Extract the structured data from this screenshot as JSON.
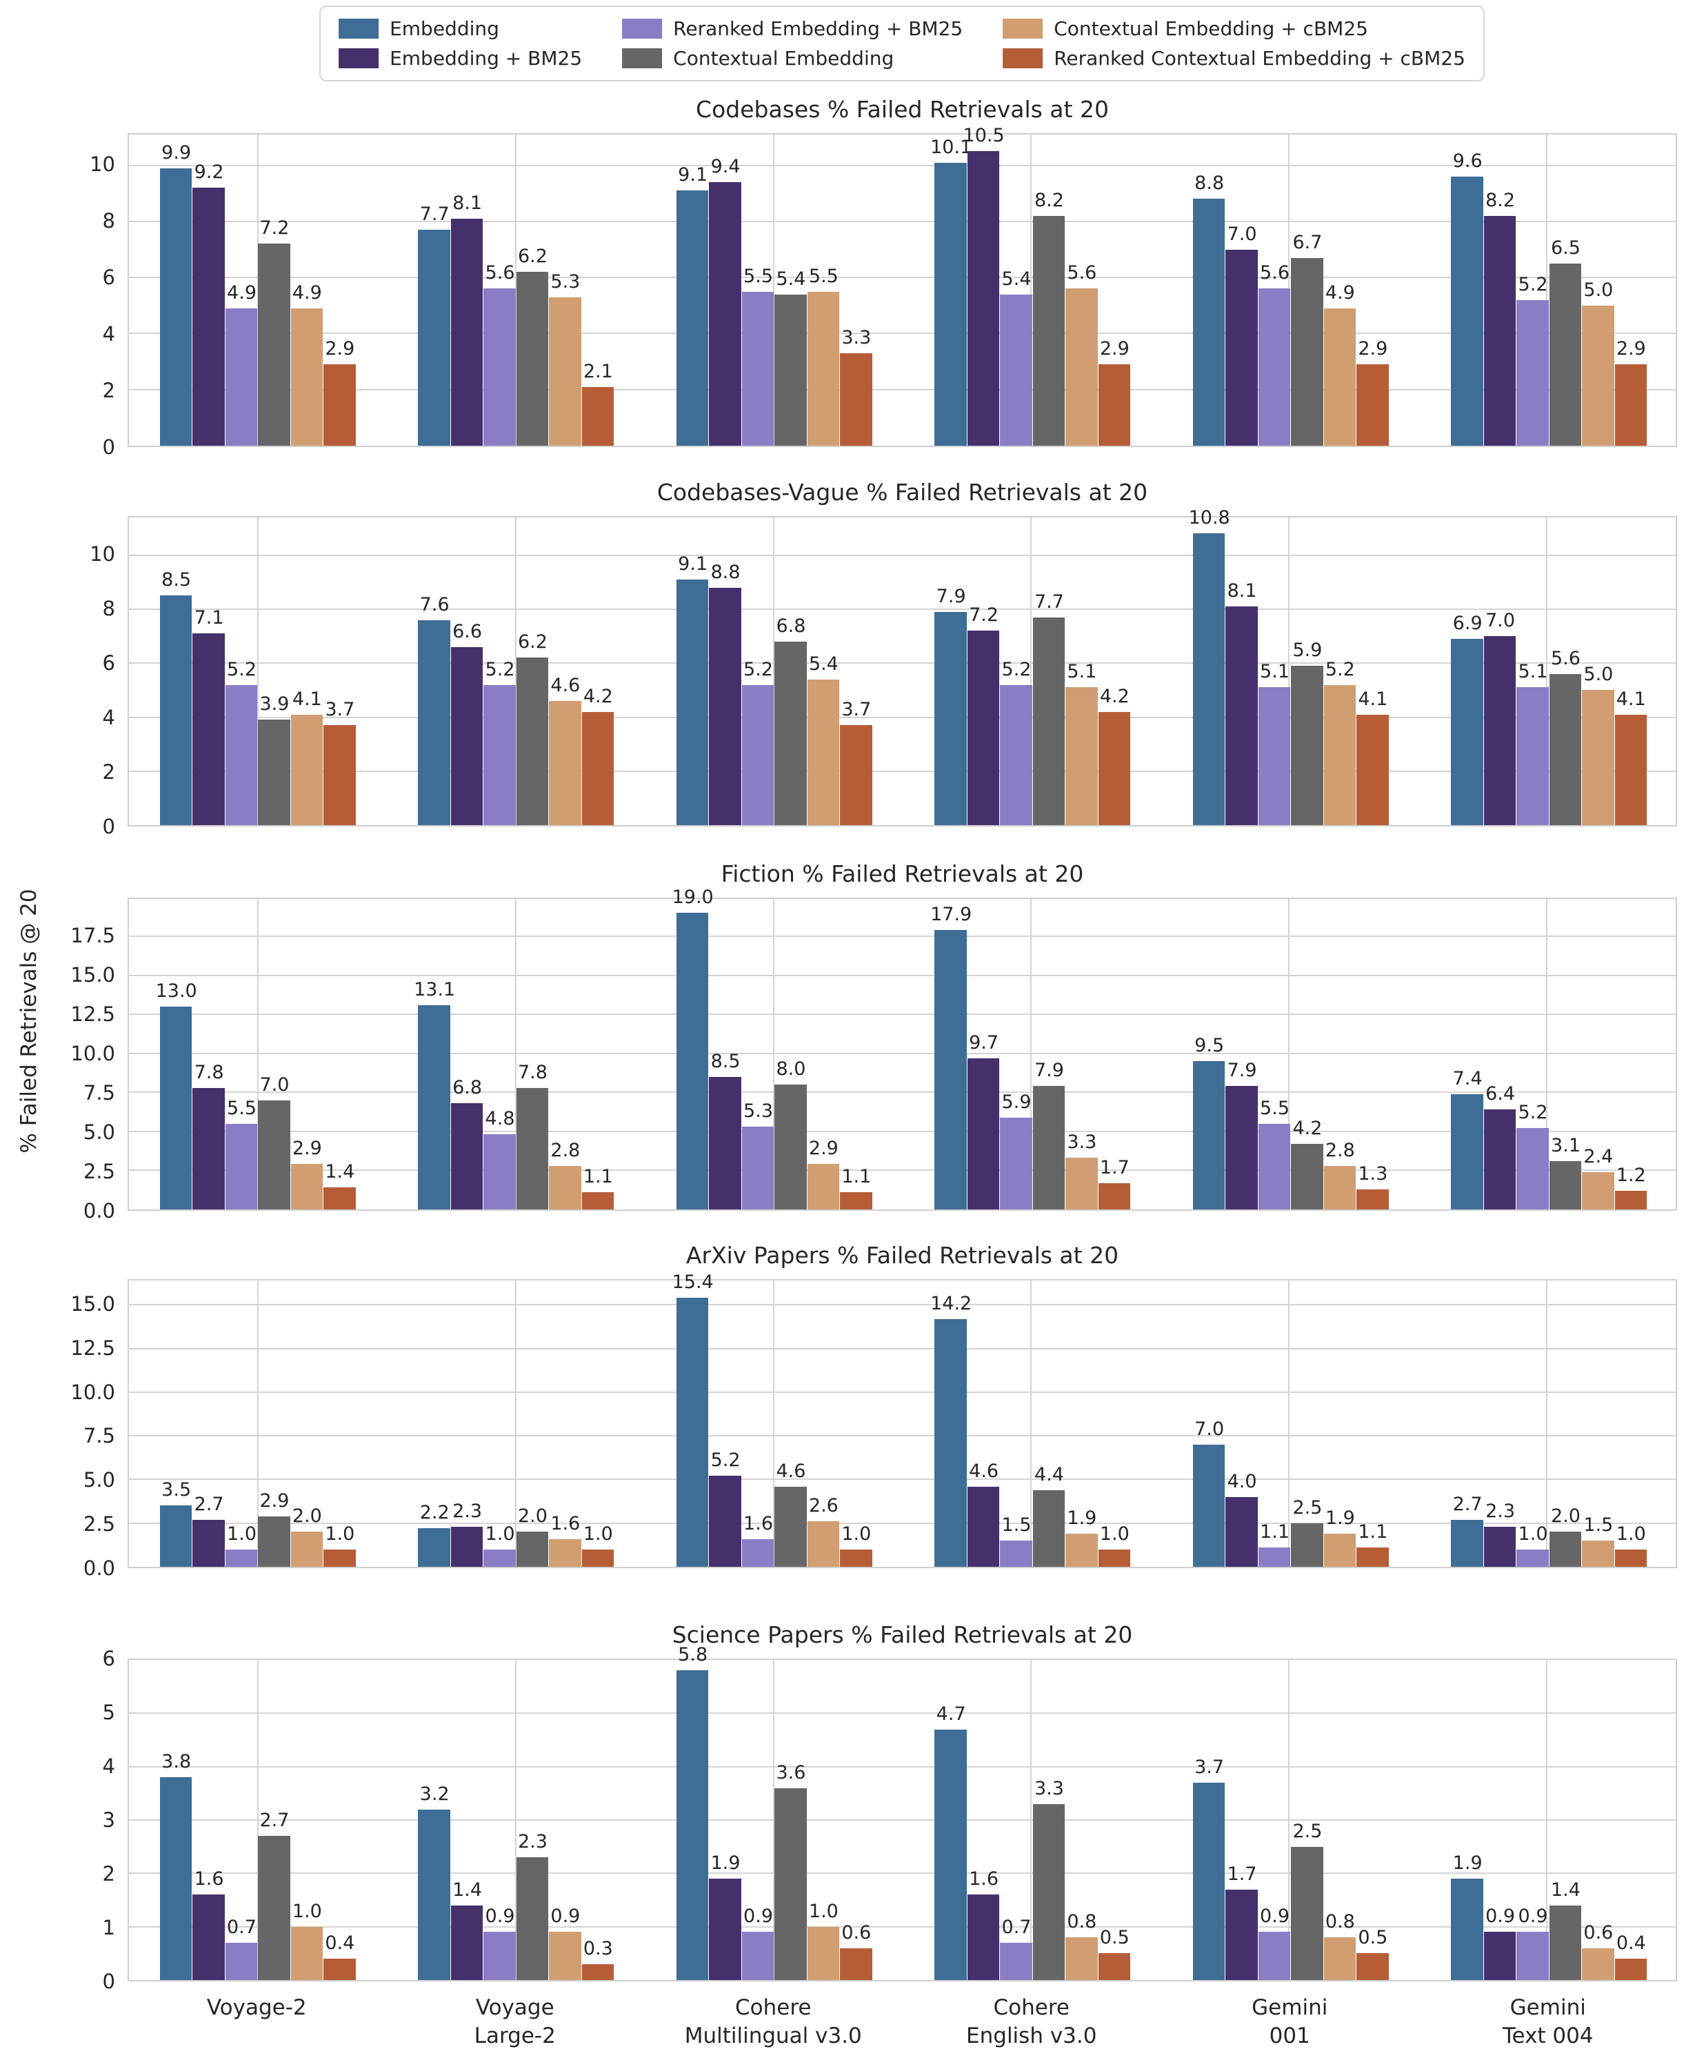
{
  "figure_kind": "grouped-bar-chart-figure",
  "ylabel": "% Failed Retrievals @ 20",
  "legend": {
    "items": [
      {
        "label": "Embedding",
        "color": "#3e6d96"
      },
      {
        "label": "Embedding + BM25",
        "color": "#45306b"
      },
      {
        "label": "Reranked Embedding + BM25",
        "color": "#8a7dc6"
      },
      {
        "label": "Contextual Embedding",
        "color": "#666666"
      },
      {
        "label": "Contextual Embedding + cBM25",
        "color": "#d19e71"
      },
      {
        "label": "Reranked Contextual Embedding + cBM25",
        "color": "#b65d38"
      }
    ]
  },
  "x_categories": [
    [
      "Voyage-2"
    ],
    [
      "Voyage",
      "Large-2"
    ],
    [
      "Cohere",
      "Multilingual v3.0"
    ],
    [
      "Cohere",
      "English v3.0"
    ],
    [
      "Gemini",
      "001"
    ],
    [
      "Gemini",
      "Text 004"
    ]
  ],
  "chart_data": [
    {
      "type": "bar",
      "title": "Codebases % Failed Retrievals at 20",
      "xlabel": "",
      "ylabel": "% Failed Retrievals @ 20",
      "ylim": [
        0,
        11.1
      ],
      "yticks": [
        0,
        2,
        4,
        6,
        8,
        10
      ],
      "ytick_labels": [
        "0",
        "2",
        "4",
        "6",
        "8",
        "10"
      ],
      "grid": true,
      "legend_position": "top-center-above-figure",
      "categories": [
        "Voyage-2",
        "Voyage Large-2",
        "Cohere Multilingual v3.0",
        "Cohere English v3.0",
        "Gemini 001",
        "Gemini Text 004"
      ],
      "series": [
        {
          "name": "Embedding",
          "values": [
            9.9,
            7.7,
            9.1,
            10.1,
            8.8,
            9.6
          ]
        },
        {
          "name": "Embedding + BM25",
          "values": [
            9.2,
            8.1,
            9.4,
            10.5,
            7.0,
            8.2
          ]
        },
        {
          "name": "Reranked Embedding + BM25",
          "values": [
            4.9,
            5.6,
            5.5,
            5.4,
            5.6,
            5.2
          ]
        },
        {
          "name": "Contextual Embedding",
          "values": [
            7.2,
            6.2,
            5.4,
            8.2,
            6.7,
            6.5
          ]
        },
        {
          "name": "Contextual Embedding + cBM25",
          "values": [
            4.9,
            5.3,
            5.5,
            5.6,
            4.9,
            5.0
          ]
        },
        {
          "name": "Reranked Contextual Embedding + cBM25",
          "values": [
            2.9,
            2.1,
            3.3,
            2.9,
            2.9,
            2.9
          ]
        }
      ]
    },
    {
      "type": "bar",
      "title": "Codebases-Vague % Failed Retrievals at 20",
      "ylim": [
        0,
        11.4
      ],
      "yticks": [
        0,
        2,
        4,
        6,
        8,
        10
      ],
      "ytick_labels": [
        "0",
        "2",
        "4",
        "6",
        "8",
        "10"
      ],
      "grid": true,
      "categories": [
        "Voyage-2",
        "Voyage Large-2",
        "Cohere Multilingual v3.0",
        "Cohere English v3.0",
        "Gemini 001",
        "Gemini Text 004"
      ],
      "series": [
        {
          "name": "Embedding",
          "values": [
            8.5,
            7.6,
            9.1,
            7.9,
            10.8,
            6.9
          ]
        },
        {
          "name": "Embedding + BM25",
          "values": [
            7.1,
            6.6,
            8.8,
            7.2,
            8.1,
            7.0
          ]
        },
        {
          "name": "Reranked Embedding + BM25",
          "values": [
            5.2,
            5.2,
            5.2,
            5.2,
            5.1,
            5.1
          ]
        },
        {
          "name": "Contextual Embedding",
          "values": [
            3.9,
            6.2,
            6.8,
            7.7,
            5.9,
            5.6
          ]
        },
        {
          "name": "Contextual Embedding + cBM25",
          "values": [
            4.1,
            4.6,
            5.4,
            5.1,
            5.2,
            5.0
          ]
        },
        {
          "name": "Reranked Contextual Embedding + cBM25",
          "values": [
            3.7,
            4.2,
            3.7,
            4.2,
            4.1,
            4.1
          ]
        }
      ]
    },
    {
      "type": "bar",
      "title": "Fiction % Failed Retrievals at 20",
      "ylim": [
        0,
        19.9
      ],
      "yticks": [
        0,
        2.5,
        5.0,
        7.5,
        10.0,
        12.5,
        15.0,
        17.5
      ],
      "ytick_labels": [
        "0.0",
        "2.5",
        "5.0",
        "7.5",
        "10.0",
        "12.5",
        "15.0",
        "17.5"
      ],
      "grid": true,
      "categories": [
        "Voyage-2",
        "Voyage Large-2",
        "Cohere Multilingual v3.0",
        "Cohere English v3.0",
        "Gemini 001",
        "Gemini Text 004"
      ],
      "series": [
        {
          "name": "Embedding",
          "values": [
            13.0,
            13.1,
            19.0,
            17.9,
            9.5,
            7.4
          ]
        },
        {
          "name": "Embedding + BM25",
          "values": [
            7.8,
            6.8,
            8.5,
            9.7,
            7.9,
            6.4
          ]
        },
        {
          "name": "Reranked Embedding + BM25",
          "values": [
            5.5,
            4.8,
            5.3,
            5.9,
            5.5,
            5.2
          ]
        },
        {
          "name": "Contextual Embedding",
          "values": [
            7.0,
            7.8,
            8.0,
            7.9,
            4.2,
            3.1
          ]
        },
        {
          "name": "Contextual Embedding + cBM25",
          "values": [
            2.9,
            2.8,
            2.9,
            3.3,
            2.8,
            2.4
          ]
        },
        {
          "name": "Reranked Contextual Embedding + cBM25",
          "values": [
            1.4,
            1.1,
            1.1,
            1.7,
            1.3,
            1.2
          ]
        }
      ]
    },
    {
      "type": "bar",
      "title": "ArXiv Papers % Failed Retrievals at 20",
      "ylim": [
        0,
        16.4
      ],
      "yticks": [
        0,
        2.5,
        5.0,
        7.5,
        10.0,
        12.5,
        15.0
      ],
      "ytick_labels": [
        "0.0",
        "2.5",
        "5.0",
        "7.5",
        "10.0",
        "12.5",
        "15.0"
      ],
      "grid": true,
      "categories": [
        "Voyage-2",
        "Voyage Large-2",
        "Cohere Multilingual v3.0",
        "Cohere English v3.0",
        "Gemini 001",
        "Gemini Text 004"
      ],
      "series": [
        {
          "name": "Embedding",
          "values": [
            3.5,
            2.2,
            15.4,
            14.2,
            7.0,
            2.7
          ]
        },
        {
          "name": "Embedding + BM25",
          "values": [
            2.7,
            2.3,
            5.2,
            4.6,
            4.0,
            2.3
          ]
        },
        {
          "name": "Reranked Embedding + BM25",
          "values": [
            1.0,
            1.0,
            1.6,
            1.5,
            1.1,
            1.0
          ]
        },
        {
          "name": "Contextual Embedding",
          "values": [
            2.9,
            2.0,
            4.6,
            4.4,
            2.5,
            2.0
          ]
        },
        {
          "name": "Contextual Embedding + cBM25",
          "values": [
            2.0,
            1.6,
            2.6,
            1.9,
            1.9,
            1.5
          ]
        },
        {
          "name": "Reranked Contextual Embedding + cBM25",
          "values": [
            1.0,
            1.0,
            1.0,
            1.0,
            1.1,
            1.0
          ]
        }
      ]
    },
    {
      "type": "bar",
      "title": "Science Papers % Failed Retrievals at 20",
      "ylim": [
        0,
        6.0
      ],
      "yticks": [
        0,
        1,
        2,
        3,
        4,
        5,
        6
      ],
      "ytick_labels": [
        "0",
        "1",
        "2",
        "3",
        "4",
        "5",
        "6"
      ],
      "grid": true,
      "categories": [
        "Voyage-2",
        "Voyage Large-2",
        "Cohere Multilingual v3.0",
        "Cohere English v3.0",
        "Gemini 001",
        "Gemini Text 004"
      ],
      "series": [
        {
          "name": "Embedding",
          "values": [
            3.8,
            3.2,
            5.8,
            4.7,
            3.7,
            1.9
          ]
        },
        {
          "name": "Embedding + BM25",
          "values": [
            1.6,
            1.4,
            1.9,
            1.6,
            1.7,
            0.9
          ]
        },
        {
          "name": "Reranked Embedding + BM25",
          "values": [
            0.7,
            0.9,
            0.9,
            0.7,
            0.9,
            0.9
          ]
        },
        {
          "name": "Contextual Embedding",
          "values": [
            2.7,
            2.3,
            3.6,
            3.3,
            2.5,
            1.4
          ]
        },
        {
          "name": "Contextual Embedding + cBM25",
          "values": [
            1.0,
            0.9,
            1.0,
            0.8,
            0.8,
            0.6
          ]
        },
        {
          "name": "Reranked Contextual Embedding + cBM25",
          "values": [
            0.4,
            0.3,
            0.6,
            0.5,
            0.5,
            0.4
          ]
        }
      ]
    }
  ]
}
